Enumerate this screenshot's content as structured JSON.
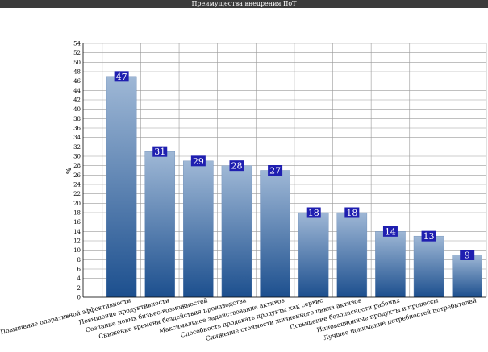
{
  "window": {
    "title": "Преимущества внедрения IIoT"
  },
  "chart_data": {
    "type": "bar",
    "title": "Преимущества внедрения IIoT",
    "ylabel": "%",
    "xlabel": "",
    "ylim": [
      0,
      54
    ],
    "y_tick_step": 2,
    "grid": true,
    "categories": [
      "Повышение оперативной эффективности",
      "Повышение продуктивности",
      "Создание новых бизнес-возможностей",
      "Снижение времени бездействия производства",
      "Максимальное задействование активов",
      "Способность продавать продукты как сервис",
      "Снижение стоимости жизненного цикла активов",
      "Повышение безопасности рабочих",
      "Инновационные продукты и процессы",
      "Лучшее понимание потребностей потребителей"
    ],
    "values": [
      47,
      31,
      29,
      28,
      27,
      18,
      18,
      14,
      13,
      9
    ],
    "colors": {
      "bar_top": "#9fb8d6",
      "bar_bottom": "#1c4f8e",
      "label_bg": "#1f1fb0",
      "grid": "#9a9a9a"
    }
  }
}
